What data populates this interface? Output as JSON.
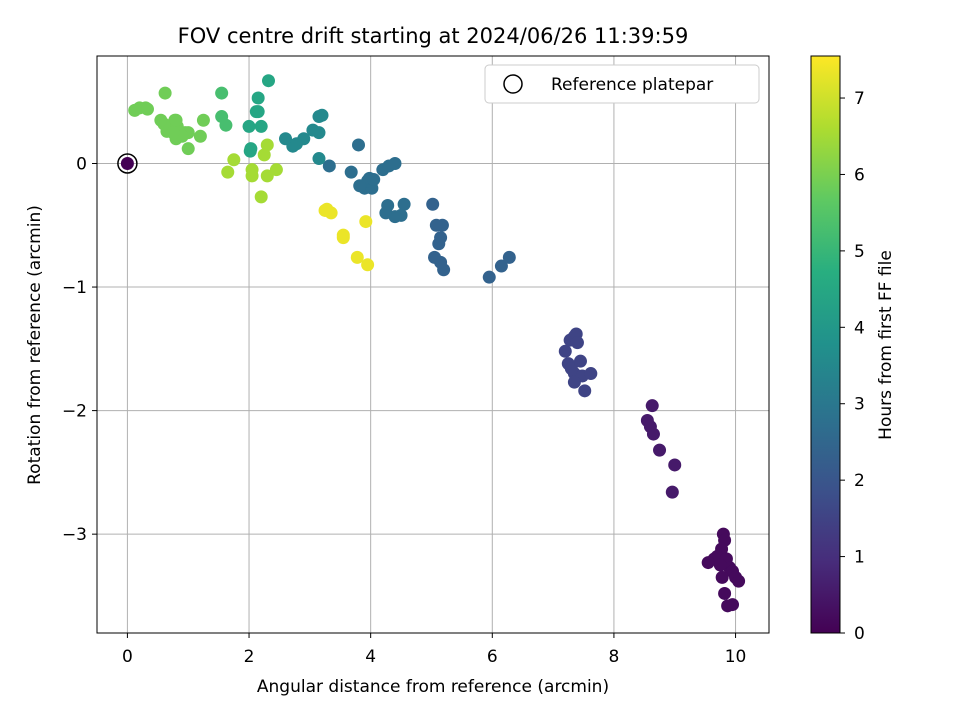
{
  "chart_data": {
    "type": "scatter",
    "title": "FOV centre drift starting at 2024/06/26 11:39:59",
    "xlabel": "Angular distance from reference (arcmin)",
    "ylabel": "Rotation from reference (arcmin)",
    "xlim": [
      -0.5,
      10.55
    ],
    "ylim": [
      -3.8,
      0.87
    ],
    "xticks": [
      0,
      2,
      4,
      6,
      8,
      10
    ],
    "xtick_labels": [
      "0",
      "2",
      "4",
      "6",
      "8",
      "10"
    ],
    "yticks": [
      0,
      -1,
      -2,
      -3
    ],
    "ytick_labels": [
      "0",
      "−1",
      "−2",
      "−3"
    ],
    "grid": true,
    "legend": {
      "placement": "top-right",
      "entries": [
        "Reference platepar"
      ]
    },
    "colorbar": {
      "label": "Hours from first FF file",
      "range": [
        0,
        7.55
      ],
      "ticks": [
        0,
        1,
        2,
        3,
        4,
        5,
        6,
        7
      ],
      "tick_labels": [
        "0",
        "1",
        "2",
        "3",
        "4",
        "5",
        "6",
        "7"
      ],
      "colormap": "viridis"
    },
    "reference_point": {
      "x": 0,
      "y": 0
    },
    "series": [
      {
        "points": [
          [
            0,
            0,
            0
          ],
          [
            9.8,
            -3.0,
            0.2
          ],
          [
            9.82,
            -3.05,
            0.2
          ],
          [
            9.77,
            -3.12,
            0.2
          ],
          [
            9.7,
            -3.18,
            0.2
          ],
          [
            9.65,
            -3.2,
            0.2
          ],
          [
            9.55,
            -3.23,
            0.2
          ],
          [
            9.85,
            -3.2,
            0.2
          ],
          [
            9.9,
            -3.27,
            0.2
          ],
          [
            9.95,
            -3.3,
            0.2
          ],
          [
            10.0,
            -3.35,
            0.2
          ],
          [
            10.05,
            -3.38,
            0.2
          ],
          [
            9.78,
            -3.35,
            0.2
          ],
          [
            9.82,
            -3.48,
            0.2
          ],
          [
            9.87,
            -3.58,
            0.2
          ],
          [
            9.95,
            -3.57,
            0.2
          ],
          [
            9.75,
            -3.25,
            0.2
          ],
          [
            8.63,
            -1.96,
            0.55
          ],
          [
            8.55,
            -2.08,
            0.55
          ],
          [
            8.6,
            -2.13,
            0.55
          ],
          [
            8.65,
            -2.19,
            0.55
          ],
          [
            8.75,
            -2.32,
            0.55
          ],
          [
            9.0,
            -2.44,
            0.55
          ],
          [
            8.96,
            -2.66,
            0.55
          ],
          [
            7.2,
            -1.52,
            1.55
          ],
          [
            7.28,
            -1.43,
            1.55
          ],
          [
            7.35,
            -1.4,
            1.55
          ],
          [
            7.38,
            -1.38,
            1.55
          ],
          [
            7.4,
            -1.45,
            1.55
          ],
          [
            7.25,
            -1.62,
            1.55
          ],
          [
            7.3,
            -1.66,
            1.55
          ],
          [
            7.35,
            -1.7,
            1.55
          ],
          [
            7.45,
            -1.6,
            1.55
          ],
          [
            7.48,
            -1.72,
            1.55
          ],
          [
            7.35,
            -1.77,
            1.55
          ],
          [
            7.52,
            -1.84,
            1.55
          ],
          [
            7.62,
            -1.7,
            1.55
          ],
          [
            5.95,
            -0.92,
            2.4
          ],
          [
            6.15,
            -0.83,
            2.4
          ],
          [
            6.28,
            -0.76,
            2.4
          ],
          [
            5.2,
            -0.86,
            2.4
          ],
          [
            5.15,
            -0.8,
            2.4
          ],
          [
            5.05,
            -0.76,
            2.4
          ],
          [
            5.12,
            -0.65,
            2.4
          ],
          [
            5.15,
            -0.6,
            2.4
          ],
          [
            5.18,
            -0.5,
            2.4
          ],
          [
            5.08,
            -0.5,
            2.4
          ],
          [
            5.02,
            -0.33,
            2.4
          ],
          [
            4.55,
            -0.33,
            2.75
          ],
          [
            4.5,
            -0.42,
            2.75
          ],
          [
            4.4,
            -0.43,
            2.75
          ],
          [
            4.28,
            -0.34,
            2.75
          ],
          [
            4.25,
            -0.4,
            2.75
          ],
          [
            3.9,
            -0.2,
            2.75
          ],
          [
            4.02,
            -0.2,
            2.75
          ],
          [
            3.95,
            -0.14,
            2.75
          ],
          [
            3.98,
            -0.12,
            2.75
          ],
          [
            4.05,
            -0.13,
            2.75
          ],
          [
            4.2,
            -0.05,
            2.75
          ],
          [
            4.3,
            -0.02,
            2.75
          ],
          [
            4.4,
            0.0,
            2.75
          ],
          [
            3.82,
            -0.18,
            2.75
          ],
          [
            3.68,
            -0.07,
            2.75
          ],
          [
            3.32,
            -0.02,
            2.75
          ],
          [
            3.8,
            0.15,
            2.75
          ],
          [
            3.15,
            0.04,
            3.55
          ],
          [
            3.15,
            0.25,
            3.55
          ],
          [
            3.05,
            0.27,
            3.55
          ],
          [
            3.15,
            0.38,
            3.55
          ],
          [
            3.2,
            0.39,
            3.55
          ],
          [
            2.9,
            0.2,
            3.55
          ],
          [
            2.78,
            0.16,
            3.55
          ],
          [
            2.72,
            0.14,
            3.55
          ],
          [
            2.6,
            0.2,
            3.55
          ],
          [
            2.32,
            0.67,
            4.5
          ],
          [
            2.15,
            0.53,
            4.5
          ],
          [
            2.12,
            0.42,
            4.5
          ],
          [
            2.15,
            0.42,
            4.5
          ],
          [
            2.2,
            0.3,
            4.5
          ],
          [
            2.0,
            0.3,
            4.5
          ],
          [
            2.02,
            0.1,
            4.5
          ],
          [
            2.03,
            0.12,
            4.5
          ],
          [
            1.55,
            0.57,
            5.3
          ],
          [
            1.55,
            0.38,
            5.3
          ],
          [
            1.62,
            0.31,
            5.3
          ],
          [
            1.25,
            0.35,
            5.9
          ],
          [
            1.2,
            0.22,
            5.9
          ],
          [
            1.0,
            0.25,
            5.9
          ],
          [
            0.95,
            0.25,
            5.9
          ],
          [
            1.0,
            0.12,
            5.9
          ],
          [
            0.8,
            0.2,
            5.9
          ],
          [
            0.82,
            0.3,
            5.9
          ],
          [
            0.78,
            0.35,
            5.9
          ],
          [
            0.7,
            0.3,
            5.9
          ],
          [
            0.65,
            0.26,
            5.9
          ],
          [
            0.6,
            0.32,
            5.9
          ],
          [
            0.62,
            0.57,
            5.9
          ],
          [
            0.55,
            0.35,
            5.9
          ],
          [
            0.3,
            0.45,
            5.9
          ],
          [
            0.2,
            0.45,
            5.9
          ],
          [
            0.33,
            0.44,
            5.9
          ],
          [
            0.12,
            0.43,
            5.9
          ],
          [
            0.8,
            0.35,
            5.9
          ],
          [
            0.85,
            0.25,
            5.9
          ],
          [
            0.9,
            0.22,
            5.9
          ],
          [
            0.75,
            0.25,
            5.9
          ],
          [
            1.75,
            0.03,
            6.55
          ],
          [
            1.65,
            -0.07,
            6.55
          ],
          [
            2.2,
            -0.27,
            6.55
          ],
          [
            2.05,
            -0.1,
            6.55
          ],
          [
            2.3,
            -0.1,
            6.55
          ],
          [
            2.45,
            -0.05,
            6.55
          ],
          [
            2.3,
            0.15,
            6.55
          ],
          [
            2.25,
            0.07,
            6.55
          ],
          [
            2.05,
            -0.05,
            6.55
          ],
          [
            3.25,
            -0.38,
            7.35
          ],
          [
            3.35,
            -0.4,
            7.35
          ],
          [
            3.28,
            -0.37,
            7.35
          ],
          [
            3.55,
            -0.58,
            7.35
          ],
          [
            3.55,
            -0.6,
            7.35
          ],
          [
            3.92,
            -0.47,
            7.35
          ],
          [
            3.78,
            -0.76,
            7.35
          ],
          [
            3.95,
            -0.82,
            7.35
          ]
        ]
      }
    ]
  }
}
